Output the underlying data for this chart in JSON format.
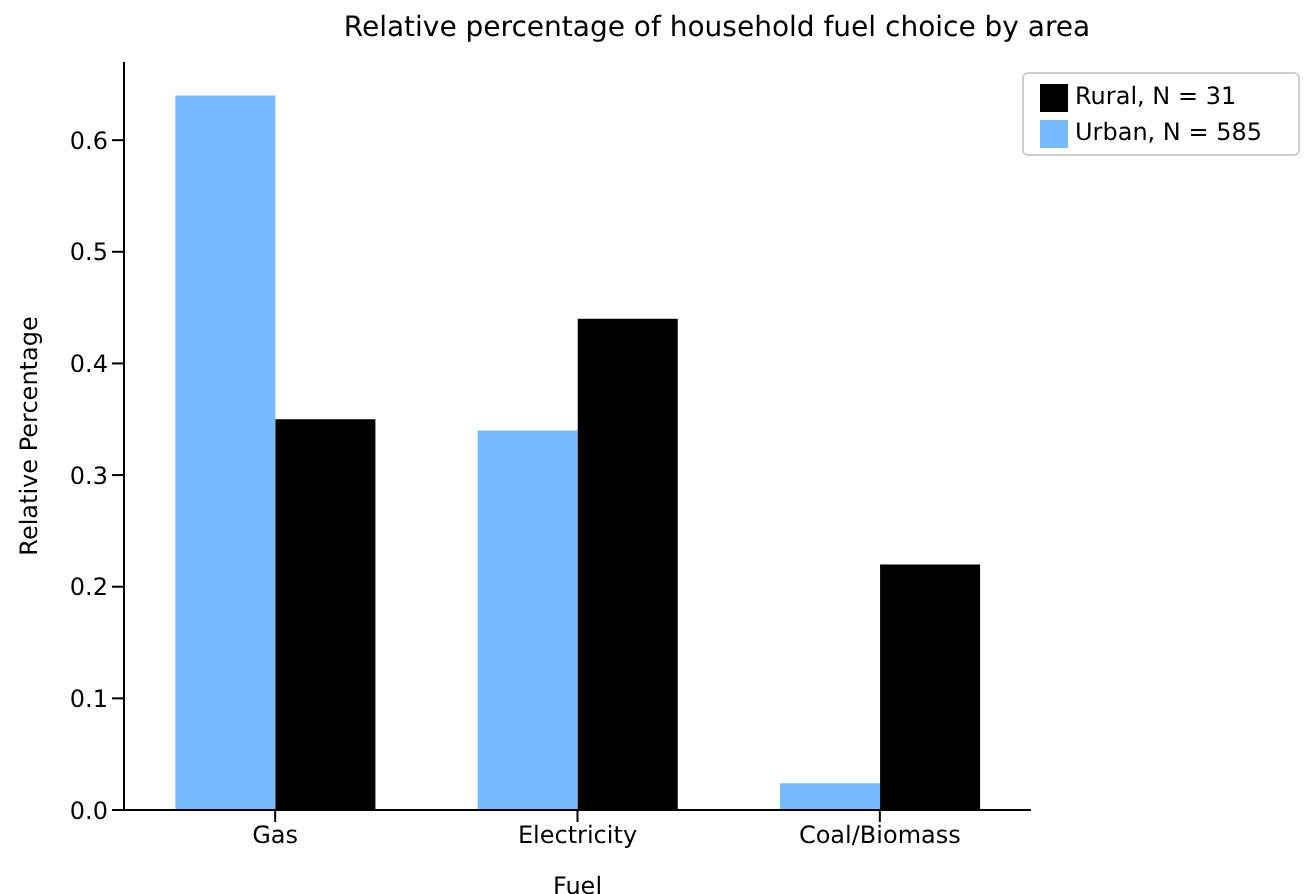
{
  "chart_data": {
    "type": "bar",
    "title": "Relative percentage of household fuel choice by area",
    "xlabel": "Fuel",
    "ylabel": "Relative Percentage",
    "categories": [
      "Gas",
      "Electricity",
      "Coal/Biomass"
    ],
    "series": [
      {
        "name": "Urban, N = 585",
        "color": "#75bbfd",
        "values": [
          0.64,
          0.34,
          0.024
        ]
      },
      {
        "name": "Rural, N = 31",
        "color": "#000000",
        "values": [
          0.35,
          0.44,
          0.22
        ]
      }
    ],
    "ylim": [
      0,
      0.67
    ],
    "yticks": [
      {
        "value": 0,
        "label": "0.0"
      },
      0.1,
      0.2,
      0.3,
      0.4,
      0.5,
      0.6
    ],
    "legend": "top right"
  }
}
